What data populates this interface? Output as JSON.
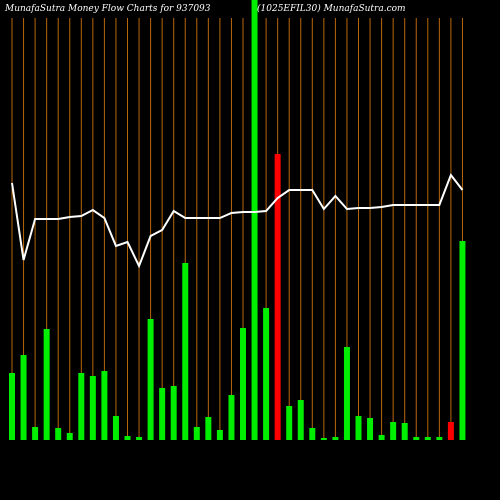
{
  "chart_data": {
    "type": "bar",
    "title": "MunafaSutra  Money Flow  Charts for 937093",
    "subtitle": "(1025EFIL30) MunafaSutra.com",
    "categories": [
      null,
      null,
      null,
      null,
      null,
      null,
      null,
      null,
      null,
      null,
      null,
      null,
      null,
      null,
      null,
      null,
      null,
      null,
      null,
      null,
      null,
      null,
      null,
      null,
      null,
      null,
      null,
      null,
      null,
      null,
      null,
      null,
      null,
      null,
      null,
      null,
      null,
      null,
      null,
      null
    ],
    "values": [
      67,
      85,
      13,
      111,
      12,
      7,
      67,
      64,
      69,
      24,
      4,
      3,
      121,
      52,
      54,
      177,
      13,
      23,
      10,
      45,
      112,
      440,
      132,
      286,
      34,
      40,
      12,
      2,
      3,
      93,
      24,
      22,
      5,
      18,
      17,
      3,
      3,
      3,
      18,
      199
    ],
    "colors": [
      "#00ee00",
      "#00ee00",
      "#00ee00",
      "#00ee00",
      "#00ee00",
      "#00ee00",
      "#00ee00",
      "#00ee00",
      "#00ee00",
      "#00ee00",
      "#00ee00",
      "#00ee00",
      "#00ee00",
      "#00ee00",
      "#00ee00",
      "#00ee00",
      "#00ee00",
      "#00ee00",
      "#00ee00",
      "#00ee00",
      "#00ee00",
      "#00ee00",
      "#00ee00",
      "#ff0000",
      "#00ee00",
      "#00ee00",
      "#00ee00",
      "#00ee00",
      "#00ee00",
      "#00ee00",
      "#00ee00",
      "#00ee00",
      "#00ee00",
      "#00ee00",
      "#00ee00",
      "#00ee00",
      "#00ee00",
      "#00ee00",
      "#ff0000",
      "#00ee00"
    ],
    "line_values": [
      257,
      180,
      221,
      221,
      221,
      223,
      224,
      230,
      222,
      194,
      198,
      174,
      204,
      210,
      229,
      222,
      222,
      222,
      222,
      227,
      228,
      228,
      229,
      242,
      250,
      250,
      250,
      231,
      244,
      231,
      232,
      232,
      233,
      235,
      235,
      235,
      235,
      235,
      265,
      250
    ],
    "line_color": "#ffffff",
    "grid_color": "#b8660b",
    "ylim": [
      0,
      440
    ]
  }
}
